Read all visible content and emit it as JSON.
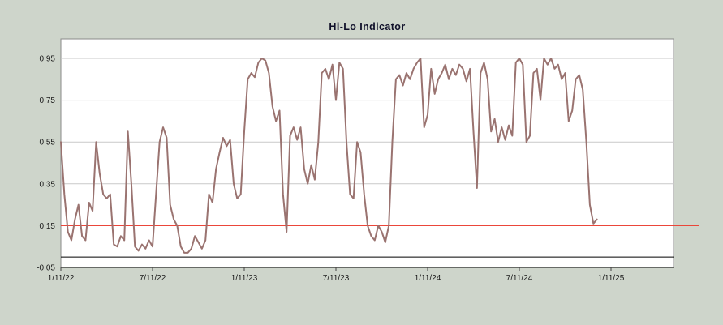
{
  "chart_data": {
    "type": "line",
    "title": "Hi-Lo Indicator",
    "series_name": "Hi-Lo Indicator",
    "x_unit": "weeks since 1/11/22",
    "x_tick_labels": [
      "1/11/22",
      "7/11/22",
      "1/11/23",
      "7/11/23",
      "1/11/24",
      "7/11/24",
      "1/11/25"
    ],
    "x_ticks_weeks": [
      0,
      26,
      52,
      78,
      104,
      130,
      156
    ],
    "y_tick_labels": [
      "-0.05",
      "0.15",
      "0.35",
      "0.55",
      "0.75",
      "0.95"
    ],
    "y_ticks": [
      -0.05,
      0.15,
      0.35,
      0.55,
      0.75,
      0.95
    ],
    "ylim": [
      -0.05,
      1.043
    ],
    "x_domain_weeks": [
      0,
      174
    ],
    "grid": "horizontal-only",
    "legend": "none",
    "line_color": "#9a7370",
    "reference_lines": [
      {
        "name": "threshold-line",
        "value": 0.15,
        "color": "#ee3124"
      },
      {
        "name": "zero-line",
        "value": 0.0,
        "color": "#000000"
      }
    ],
    "values": [
      0.55,
      0.3,
      0.12,
      0.08,
      0.18,
      0.25,
      0.1,
      0.08,
      0.26,
      0.22,
      0.55,
      0.4,
      0.3,
      0.28,
      0.3,
      0.06,
      0.05,
      0.1,
      0.08,
      0.6,
      0.35,
      0.05,
      0.03,
      0.06,
      0.04,
      0.08,
      0.05,
      0.3,
      0.55,
      0.62,
      0.57,
      0.25,
      0.18,
      0.15,
      0.05,
      0.02,
      0.02,
      0.04,
      0.1,
      0.07,
      0.04,
      0.08,
      0.3,
      0.26,
      0.42,
      0.5,
      0.57,
      0.53,
      0.56,
      0.35,
      0.28,
      0.3,
      0.6,
      0.85,
      0.88,
      0.86,
      0.93,
      0.95,
      0.94,
      0.88,
      0.72,
      0.65,
      0.7,
      0.3,
      0.12,
      0.58,
      0.62,
      0.56,
      0.62,
      0.42,
      0.35,
      0.44,
      0.37,
      0.55,
      0.88,
      0.9,
      0.85,
      0.92,
      0.75,
      0.93,
      0.9,
      0.55,
      0.3,
      0.28,
      0.55,
      0.5,
      0.3,
      0.15,
      0.1,
      0.08,
      0.15,
      0.12,
      0.07,
      0.15,
      0.55,
      0.85,
      0.87,
      0.82,
      0.88,
      0.85,
      0.9,
      0.93,
      0.95,
      0.62,
      0.68,
      0.9,
      0.78,
      0.85,
      0.88,
      0.92,
      0.85,
      0.9,
      0.87,
      0.92,
      0.9,
      0.84,
      0.9,
      0.6,
      0.33,
      0.88,
      0.93,
      0.85,
      0.6,
      0.66,
      0.55,
      0.62,
      0.56,
      0.63,
      0.58,
      0.93,
      0.95,
      0.92,
      0.55,
      0.58,
      0.88,
      0.9,
      0.75,
      0.95,
      0.92,
      0.95,
      0.9,
      0.92,
      0.85,
      0.88,
      0.65,
      0.7,
      0.85,
      0.87,
      0.8,
      0.55,
      0.25,
      0.16,
      0.18
    ]
  },
  "colors": {
    "page_background": "#ced5cb",
    "plot_background": "#ffffff",
    "gridline": "#c9c9c9",
    "plot_border": "#8a8a8a",
    "axis_text": "#1a1a1a",
    "title_text": "#10102a"
  }
}
